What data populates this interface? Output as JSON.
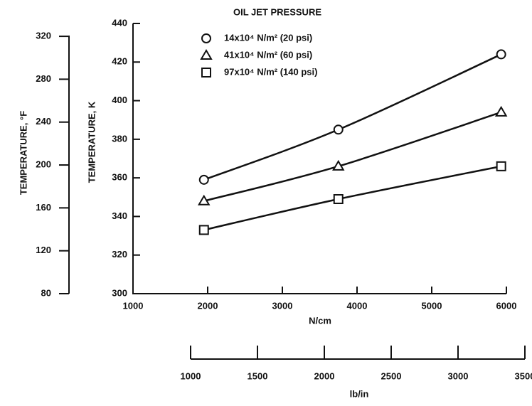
{
  "chart_data": {
    "type": "line",
    "legend_title": "OIL JET PRESSURE",
    "x": [
      1950,
      3750,
      5930
    ],
    "series": [
      {
        "name": "14x10⁴ N/m² (20 psi)",
        "color": "#111111",
        "marker": "circle",
        "values": [
          359,
          385,
          424
        ]
      },
      {
        "name": "41x10⁴ N/m² (60 psi)",
        "color": "#111111",
        "marker": "triangle",
        "values": [
          348,
          366,
          394
        ]
      },
      {
        "name": "97x10⁴ N/m² (140 psi)",
        "color": "#111111",
        "marker": "square",
        "values": [
          333,
          349,
          366
        ]
      }
    ],
    "xlabel": "N/cm",
    "xlim": [
      1000,
      6000
    ],
    "xticks": [
      1000,
      2000,
      3000,
      4000,
      5000,
      6000
    ],
    "ylabel": "TEMPERATURE, K",
    "ylim": [
      300,
      440
    ],
    "yticks": [
      300,
      320,
      340,
      360,
      380,
      400,
      420,
      440
    ],
    "y2label": "TEMPERATURE, °F",
    "y2lim": [
      80,
      332
    ],
    "y2ticks": [
      80,
      120,
      160,
      200,
      240,
      280,
      320
    ],
    "x2label": "lb/in",
    "x2lim": [
      1000,
      3500
    ],
    "x2ticks": [
      1000,
      1500,
      2000,
      2500,
      3000,
      3500
    ]
  }
}
